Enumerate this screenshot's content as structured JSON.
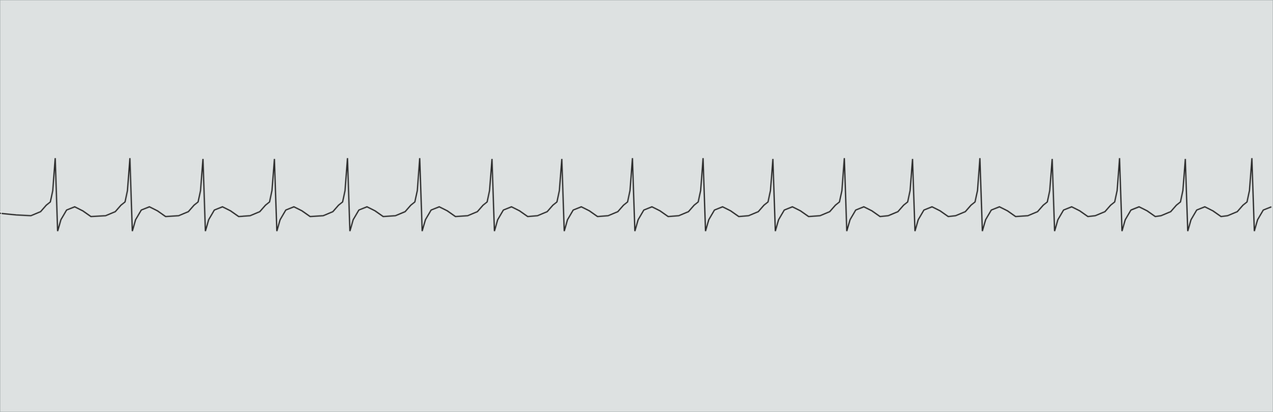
{
  "chart_data": {
    "type": "line",
    "grid": true,
    "tick_labels": false,
    "color": "#2b2b2b",
    "xlim": [
      0,
      1568
    ],
    "ylim": [
      -245,
      263
    ],
    "xticks": [
      0,
      44,
      88,
      132,
      176,
      220,
      264,
      308,
      352,
      396,
      440,
      484,
      528,
      572,
      616,
      660,
      704,
      748,
      792,
      836,
      880,
      924,
      968,
      1012,
      1056,
      1100,
      1144,
      1188,
      1232,
      1276,
      1320,
      1364,
      1408,
      1452,
      1496,
      1540
    ],
    "yticks": [
      -237,
      -193,
      -149,
      -105,
      -61,
      -17,
      27,
      71,
      115,
      159,
      203,
      247
    ],
    "x": [
      0,
      20,
      38,
      50,
      57,
      62,
      65,
      68,
      71,
      75,
      82,
      92,
      102,
      112,
      130,
      142,
      149,
      154,
      157,
      160,
      163,
      167,
      174,
      184,
      194,
      204,
      220,
      232,
      239,
      244,
      247,
      250,
      253,
      257,
      264,
      274,
      284,
      294,
      308,
      320,
      327,
      332,
      335,
      338,
      341,
      345,
      352,
      362,
      372,
      382,
      398,
      410,
      417,
      422,
      425,
      428,
      431,
      435,
      442,
      452,
      462,
      472,
      487,
      499,
      506,
      511,
      514,
      517,
      520,
      524,
      531,
      541,
      551,
      561,
      576,
      588,
      595,
      600,
      603,
      606,
      609,
      613,
      620,
      630,
      640,
      650,
      662,
      674,
      681,
      686,
      689,
      692,
      695,
      699,
      706,
      716,
      726,
      736,
      749,
      761,
      768,
      773,
      776,
      779,
      782,
      786,
      793,
      803,
      813,
      823,
      836,
      848,
      855,
      860,
      863,
      866,
      869,
      873,
      880,
      890,
      900,
      910,
      922,
      934,
      941,
      946,
      949,
      952,
      955,
      959,
      966,
      976,
      986,
      996,
      1010,
      1022,
      1029,
      1034,
      1037,
      1040,
      1043,
      1047,
      1054,
      1064,
      1074,
      1084,
      1094,
      1106,
      1113,
      1118,
      1121,
      1124,
      1127,
      1131,
      1138,
      1148,
      1158,
      1168,
      1177,
      1189,
      1196,
      1201,
      1204,
      1207,
      1210,
      1214,
      1221,
      1231,
      1241,
      1251,
      1266,
      1278,
      1285,
      1290,
      1293,
      1296,
      1299,
      1303,
      1310,
      1320,
      1330,
      1340,
      1349,
      1361,
      1368,
      1373,
      1376,
      1379,
      1382,
      1386,
      1393,
      1403,
      1413,
      1423,
      1430,
      1442,
      1449,
      1454,
      1457,
      1460,
      1463,
      1467,
      1474,
      1484,
      1494,
      1504,
      1512,
      1524,
      1531,
      1536,
      1539,
      1542,
      1545,
      1549,
      1556,
      1566
    ],
    "values": [
      0,
      -2,
      -3,
      2,
      10,
      14,
      28,
      68,
      -22,
      -8,
      4,
      8,
      3,
      -4,
      -3,
      2,
      10,
      14,
      28,
      68,
      -22,
      -8,
      4,
      8,
      3,
      -4,
      -3,
      2,
      10,
      14,
      28,
      67,
      -22,
      -8,
      4,
      8,
      3,
      -4,
      -3,
      2,
      10,
      14,
      28,
      67,
      -22,
      -8,
      4,
      8,
      3,
      -4,
      -3,
      2,
      10,
      14,
      28,
      68,
      -22,
      -8,
      4,
      8,
      3,
      -4,
      -3,
      2,
      10,
      14,
      28,
      68,
      -22,
      -8,
      4,
      8,
      3,
      -4,
      -3,
      2,
      10,
      14,
      28,
      67,
      -22,
      -8,
      4,
      8,
      3,
      -4,
      -3,
      2,
      10,
      14,
      28,
      67,
      -22,
      -8,
      4,
      8,
      3,
      -4,
      -3,
      2,
      10,
      14,
      28,
      68,
      -22,
      -8,
      4,
      8,
      3,
      -4,
      -3,
      2,
      10,
      14,
      28,
      68,
      -22,
      -8,
      4,
      8,
      3,
      -4,
      -3,
      2,
      10,
      14,
      28,
      67,
      -22,
      -8,
      4,
      8,
      3,
      -4,
      -3,
      2,
      10,
      14,
      28,
      68,
      -22,
      -8,
      4,
      8,
      3,
      -4,
      -3,
      2,
      10,
      14,
      28,
      67,
      -22,
      -8,
      4,
      8,
      3,
      -4,
      -3,
      2,
      10,
      14,
      28,
      68,
      -22,
      -8,
      4,
      8,
      3,
      -4,
      -3,
      2,
      10,
      14,
      28,
      67,
      -22,
      -8,
      4,
      8,
      3,
      -4,
      -3,
      2,
      10,
      14,
      28,
      68,
      -22,
      -8,
      4,
      8,
      3,
      -4,
      -3,
      2,
      10,
      14,
      28,
      67,
      -22,
      -8,
      4,
      8,
      3,
      -4,
      -3,
      2,
      10,
      14,
      28,
      68,
      -22,
      -8,
      4,
      8
    ]
  }
}
